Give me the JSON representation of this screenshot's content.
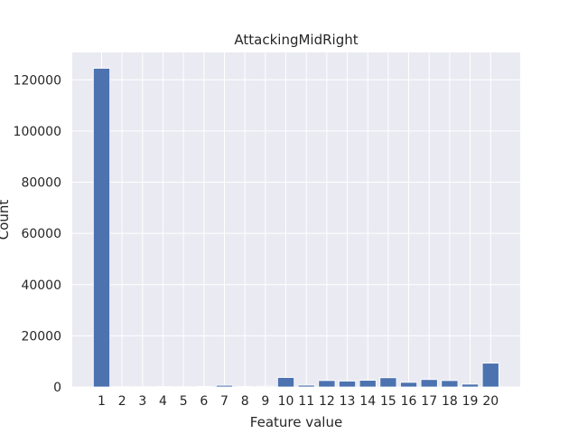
{
  "chart_data": {
    "type": "bar",
    "title": "AttackingMidRight",
    "xlabel": "Feature value",
    "ylabel": "Count",
    "categories": [
      "1",
      "2",
      "3",
      "4",
      "5",
      "6",
      "7",
      "8",
      "9",
      "10",
      "11",
      "12",
      "13",
      "14",
      "15",
      "16",
      "17",
      "18",
      "19",
      "20"
    ],
    "values": [
      124500,
      120,
      110,
      160,
      130,
      200,
      650,
      180,
      300,
      3700,
      700,
      2500,
      2300,
      2600,
      3600,
      1800,
      2900,
      2500,
      1100,
      9300
    ],
    "ylim": [
      0,
      130700
    ],
    "yticks": [
      0,
      20000,
      40000,
      60000,
      80000,
      100000,
      120000
    ],
    "ytick_labels": [
      "0",
      "20000",
      "40000",
      "60000",
      "80000",
      "100000",
      "120000"
    ],
    "grid": true,
    "colors": {
      "bar": "#4c72b0",
      "plot_background": "#eaeaf2",
      "grid": "#ffffff"
    }
  }
}
